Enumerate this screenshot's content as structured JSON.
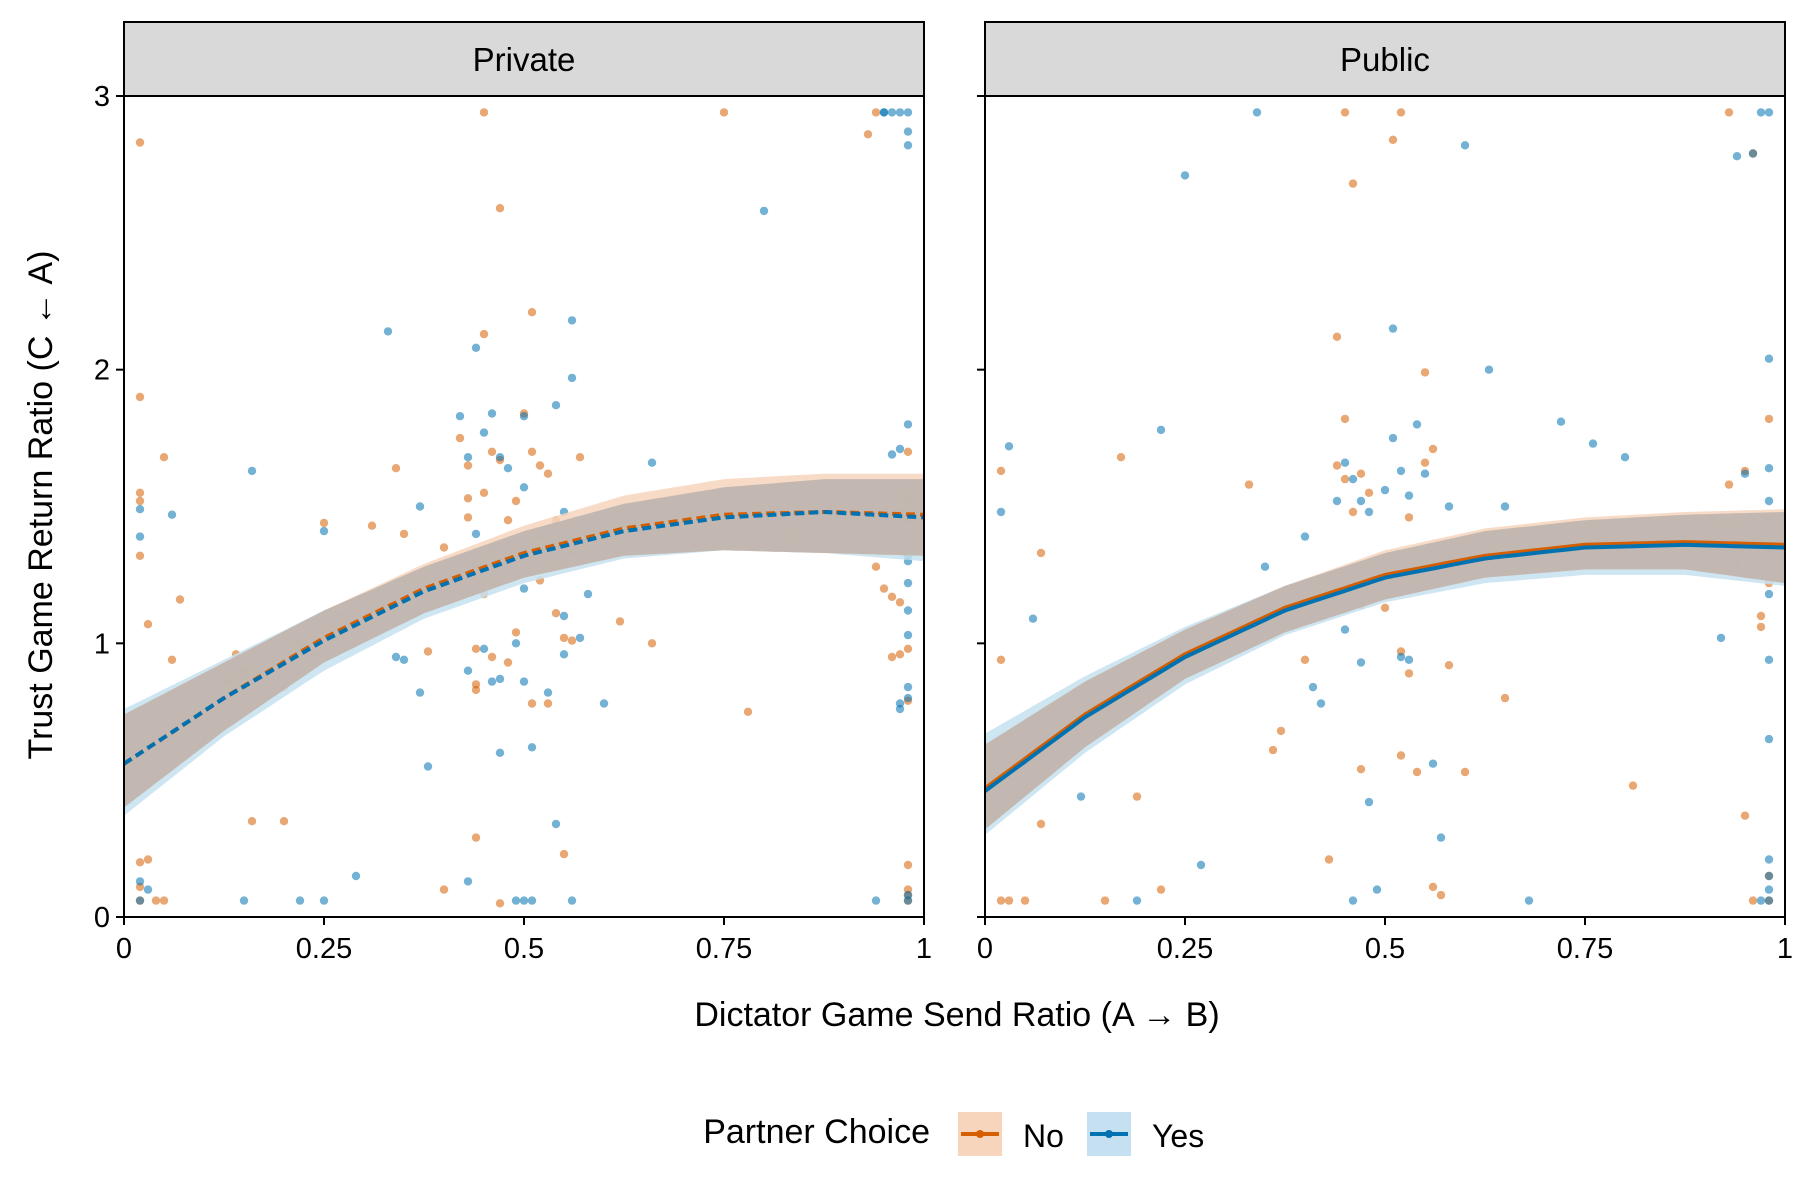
{
  "chart_data": {
    "type": "scatter",
    "xlabel": "Dictator Game Send Ratio (A → B)",
    "ylabel": "Trust Game Return Ratio (C ← A)",
    "xlim": [
      0,
      1
    ],
    "ylim": [
      0,
      3
    ],
    "x_ticks": [
      0,
      0.25,
      0.5,
      0.75,
      1
    ],
    "x_tick_labels": [
      "0",
      "0.25",
      "0.5",
      "0.75",
      "1"
    ],
    "y_ticks": [
      0,
      1,
      2,
      3
    ],
    "y_tick_labels": [
      "0",
      "1",
      "2",
      "3"
    ],
    "grid": false,
    "legend": {
      "title": "Partner Choice",
      "position": "bottom",
      "entries": [
        {
          "label": "No",
          "color": "#d55e00",
          "fill": "#f7d5bd"
        },
        {
          "label": "Yes",
          "color": "#0072b2",
          "fill": "#c5e0f0"
        }
      ]
    },
    "panels": [
      {
        "title": "Private",
        "line_style": "dashed",
        "fits": [
          {
            "group": "No",
            "x": [
              0,
              0.125,
              0.25,
              0.375,
              0.5,
              0.625,
              0.75,
              0.875,
              1
            ],
            "y": [
              0.56,
              0.8,
              1.02,
              1.2,
              1.33,
              1.42,
              1.47,
              1.48,
              1.47
            ],
            "lower": [
              0.4,
              0.68,
              0.93,
              1.11,
              1.24,
              1.32,
              1.34,
              1.33,
              1.32
            ],
            "upper": [
              0.74,
              0.93,
              1.12,
              1.29,
              1.43,
              1.54,
              1.6,
              1.62,
              1.62
            ]
          },
          {
            "group": "Yes",
            "x": [
              0,
              0.125,
              0.25,
              0.375,
              0.5,
              0.625,
              0.75,
              0.875,
              1
            ],
            "y": [
              0.56,
              0.8,
              1.01,
              1.19,
              1.32,
              1.41,
              1.46,
              1.48,
              1.46
            ],
            "lower": [
              0.37,
              0.66,
              0.9,
              1.09,
              1.22,
              1.31,
              1.34,
              1.33,
              1.3
            ],
            "upper": [
              0.76,
              0.94,
              1.12,
              1.28,
              1.41,
              1.51,
              1.57,
              1.6,
              1.6
            ]
          }
        ],
        "points": [
          {
            "group": "No",
            "x": [
              0.02,
              0.02,
              0.02,
              0.02,
              0.02,
              0.03,
              0.04,
              0.05,
              0.05,
              0.06,
              0.07,
              0.02,
              0.02,
              0.03,
              0.02,
              0.15,
              0.2,
              0.25,
              0.26,
              0.27,
              0.2,
              0.24,
              0.16,
              0.14,
              0.17,
              0.12,
              0.13,
              0.15,
              0.19,
              0.22,
              0.31,
              0.34,
              0.35,
              0.38,
              0.4,
              0.4,
              0.42,
              0.43,
              0.43,
              0.43,
              0.44,
              0.44,
              0.44,
              0.44,
              0.44,
              0.45,
              0.45,
              0.45,
              0.46,
              0.46,
              0.46,
              0.47,
              0.47,
              0.48,
              0.48,
              0.49,
              0.49,
              0.5,
              0.5,
              0.51,
              0.51,
              0.51,
              0.52,
              0.52,
              0.52,
              0.53,
              0.53,
              0.54,
              0.54,
              0.55,
              0.55,
              0.55,
              0.56,
              0.56,
              0.57,
              0.45,
              0.47,
              0.75,
              0.78,
              0.62,
              0.66,
              0.93,
              0.94,
              0.95,
              0.96,
              0.97,
              0.97,
              0.98,
              0.98,
              0.98,
              0.98,
              0.98,
              0.98,
              0.98,
              0.94,
              0.96,
              0.97,
              0.98,
              0.98
            ],
            "y": [
              2.83,
              1.9,
              1.55,
              1.52,
              1.32,
              1.07,
              0.06,
              0.06,
              1.68,
              0.94,
              1.16,
              0.2,
              0.06,
              0.21,
              0.11,
              0.88,
              0.84,
              1.44,
              1.02,
              1.1,
              0.35,
              0.96,
              0.35,
              0.96,
              0.89,
              0.8,
              0.86,
              0.9,
              0.94,
              1.0,
              1.43,
              1.64,
              1.4,
              0.97,
              0.1,
              1.35,
              1.75,
              1.65,
              1.53,
              1.46,
              1.29,
              0.98,
              0.85,
              0.83,
              0.29,
              1.55,
              1.18,
              2.13,
              1.7,
              1.35,
              0.95,
              2.59,
              1.67,
              1.45,
              0.93,
              1.52,
              1.04,
              1.84,
              1.31,
              2.21,
              1.7,
              0.78,
              1.65,
              1.39,
              1.23,
              0.78,
              1.62,
              1.45,
              1.11,
              1.29,
              1.02,
              0.23,
              1.33,
              1.01,
              1.68,
              2.94,
              0.05,
              2.94,
              0.75,
              1.08,
              1.0,
              2.86,
              2.94,
              1.2,
              1.17,
              1.15,
              0.96,
              0.98,
              1.45,
              1.52,
              1.7,
              0.06,
              0.1,
              0.19,
              1.28,
              0.95,
              1.48,
              0.79,
              0.08
            ]
          },
          {
            "group": "Yes",
            "x": [
              0.02,
              0.02,
              0.02,
              0.02,
              0.03,
              0.06,
              0.13,
              0.15,
              0.16,
              0.22,
              0.25,
              0.25,
              0.29,
              0.33,
              0.34,
              0.35,
              0.36,
              0.37,
              0.37,
              0.38,
              0.38,
              0.42,
              0.43,
              0.43,
              0.43,
              0.44,
              0.44,
              0.45,
              0.45,
              0.45,
              0.46,
              0.46,
              0.46,
              0.47,
              0.47,
              0.47,
              0.48,
              0.48,
              0.49,
              0.49,
              0.5,
              0.5,
              0.5,
              0.5,
              0.5,
              0.51,
              0.51,
              0.52,
              0.53,
              0.54,
              0.54,
              0.54,
              0.55,
              0.55,
              0.55,
              0.56,
              0.56,
              0.56,
              0.57,
              0.58,
              0.6,
              0.6,
              0.66,
              0.8,
              0.84,
              0.95,
              0.95,
              0.96,
              0.97,
              0.97,
              0.98,
              0.98,
              0.98,
              0.98,
              0.98,
              0.98,
              0.98,
              0.98,
              0.98,
              0.98,
              0.98,
              0.98,
              0.98,
              0.98,
              0.97,
              0.94,
              0.96,
              0.97,
              0.98,
              0.98
            ],
            "y": [
              1.39,
              1.49,
              0.13,
              0.06,
              0.1,
              1.47,
              0.83,
              0.06,
              1.63,
              0.06,
              0.06,
              1.41,
              0.15,
              2.14,
              0.95,
              0.94,
              1.22,
              0.82,
              1.5,
              0.55,
              1.27,
              1.83,
              0.13,
              0.9,
              1.68,
              2.08,
              1.4,
              1.77,
              1.24,
              0.98,
              1.84,
              1.3,
              0.86,
              1.68,
              0.6,
              0.87,
              1.64,
              1.3,
              1.0,
              0.06,
              1.83,
              1.57,
              1.2,
              0.86,
              0.06,
              0.62,
              0.06,
              1.35,
              0.82,
              1.87,
              1.29,
              0.34,
              1.48,
              1.1,
              0.96,
              2.18,
              1.97,
              0.06,
              1.02,
              1.18,
              1.4,
              0.78,
              1.66,
              2.58,
              1.39,
              2.94,
              2.94,
              2.94,
              2.94,
              1.71,
              2.94,
              2.87,
              2.82,
              1.8,
              1.5,
              1.12,
              1.03,
              0.84,
              0.8,
              0.08,
              0.06,
              1.55,
              1.22,
              1.3,
              0.78,
              0.06,
              1.69,
              0.76,
              1.32,
              1.52
            ]
          }
        ]
      },
      {
        "title": "Public",
        "line_style": "solid",
        "fits": [
          {
            "group": "No",
            "x": [
              0,
              0.125,
              0.25,
              0.375,
              0.5,
              0.625,
              0.75,
              0.875,
              1
            ],
            "y": [
              0.47,
              0.74,
              0.96,
              1.13,
              1.25,
              1.32,
              1.36,
              1.37,
              1.36
            ],
            "lower": [
              0.32,
              0.62,
              0.87,
              1.04,
              1.16,
              1.24,
              1.27,
              1.27,
              1.22
            ],
            "upper": [
              0.63,
              0.86,
              1.05,
              1.21,
              1.34,
              1.42,
              1.46,
              1.48,
              1.49
            ]
          },
          {
            "group": "Yes",
            "x": [
              0,
              0.125,
              0.25,
              0.375,
              0.5,
              0.625,
              0.75,
              0.875,
              1
            ],
            "y": [
              0.46,
              0.73,
              0.95,
              1.12,
              1.24,
              1.31,
              1.35,
              1.36,
              1.35
            ],
            "lower": [
              0.3,
              0.6,
              0.85,
              1.03,
              1.15,
              1.22,
              1.25,
              1.25,
              1.21
            ],
            "upper": [
              0.67,
              0.88,
              1.06,
              1.21,
              1.33,
              1.41,
              1.45,
              1.47,
              1.48
            ]
          }
        ],
        "points": [
          {
            "group": "No",
            "x": [
              0.02,
              0.02,
              0.02,
              0.03,
              0.05,
              0.07,
              0.07,
              0.15,
              0.17,
              0.19,
              0.22,
              0.25,
              0.33,
              0.36,
              0.37,
              0.4,
              0.43,
              0.44,
              0.44,
              0.45,
              0.45,
              0.45,
              0.46,
              0.46,
              0.47,
              0.47,
              0.47,
              0.48,
              0.49,
              0.5,
              0.51,
              0.52,
              0.52,
              0.52,
              0.53,
              0.53,
              0.54,
              0.55,
              0.55,
              0.56,
              0.56,
              0.57,
              0.57,
              0.58,
              0.6,
              0.65,
              0.81,
              0.93,
              0.95,
              0.96,
              0.97,
              0.98,
              0.98,
              0.98,
              0.98,
              0.98,
              0.95,
              0.96,
              0.97,
              0.98,
              0.93,
              0.94
            ],
            "y": [
              1.63,
              0.94,
              0.06,
              0.06,
              0.06,
              1.33,
              0.34,
              0.06,
              1.68,
              0.44,
              0.1,
              1.02,
              1.58,
              0.61,
              0.68,
              0.94,
              0.21,
              2.12,
              1.65,
              1.82,
              1.6,
              2.94,
              2.68,
              1.48,
              1.62,
              1.14,
              0.54,
              1.55,
              1.19,
              1.13,
              2.84,
              2.94,
              0.97,
              0.59,
              0.89,
              1.46,
              0.53,
              1.99,
              1.66,
              1.71,
              0.11,
              1.31,
              0.08,
              0.92,
              0.53,
              0.8,
              0.48,
              1.58,
              1.63,
              2.79,
              1.1,
              1.82,
              1.45,
              1.34,
              1.22,
              0.15,
              0.37,
              0.06,
              1.06,
              0.06,
              2.94,
              1.29
            ]
          },
          {
            "group": "Yes",
            "x": [
              0.02,
              0.03,
              0.06,
              0.12,
              0.19,
              0.22,
              0.25,
              0.27,
              0.34,
              0.35,
              0.4,
              0.41,
              0.42,
              0.44,
              0.45,
              0.45,
              0.46,
              0.46,
              0.47,
              0.47,
              0.48,
              0.48,
              0.49,
              0.5,
              0.51,
              0.51,
              0.52,
              0.52,
              0.53,
              0.53,
              0.54,
              0.54,
              0.55,
              0.56,
              0.57,
              0.58,
              0.6,
              0.63,
              0.65,
              0.68,
              0.72,
              0.76,
              0.8,
              0.92,
              0.93,
              0.94,
              0.95,
              0.96,
              0.97,
              0.97,
              0.98,
              0.98,
              0.98,
              0.98,
              0.98,
              0.98,
              0.98,
              0.98,
              0.98,
              0.98,
              0.98,
              0.98,
              0.97
            ],
            "y": [
              1.48,
              1.72,
              1.09,
              0.44,
              0.06,
              1.78,
              2.71,
              0.19,
              2.94,
              1.28,
              1.39,
              0.84,
              0.78,
              1.52,
              1.66,
              1.05,
              1.6,
              0.06,
              1.52,
              0.93,
              1.48,
              0.42,
              0.1,
              1.56,
              2.15,
              1.75,
              1.63,
              0.95,
              1.54,
              0.94,
              1.8,
              1.23,
              1.62,
              0.56,
              0.29,
              1.5,
              2.82,
              2.0,
              1.5,
              0.06,
              1.81,
              1.73,
              1.68,
              1.02,
              1.45,
              2.78,
              1.62,
              2.79,
              1.37,
              2.94,
              2.04,
              1.52,
              1.38,
              1.18,
              0.94,
              0.65,
              0.21,
              0.15,
              0.1,
              0.06,
              2.94,
              1.64,
              0.06
            ]
          }
        ]
      }
    ]
  }
}
